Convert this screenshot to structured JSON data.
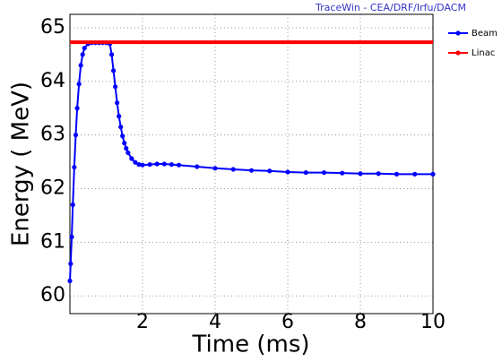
{
  "chart_data": {
    "type": "line",
    "title": "TraceWin - CEA/DRF/Irfu/DACM",
    "x_label": "Time (ms)",
    "y_label": "Energy ( MeV)",
    "xlim": [
      0,
      10
    ],
    "xticks": [
      2,
      4,
      6,
      8,
      10
    ],
    "ylim": [
      59.67,
      65.25
    ],
    "yticks": [
      60,
      61,
      62,
      63,
      64,
      65
    ],
    "grid": true,
    "legend": "top-right",
    "series": [
      {
        "name": "Beam",
        "color": "#0000ff",
        "markers": true,
        "x": [
          0,
          0.02,
          0.05,
          0.08,
          0.12,
          0.16,
          0.2,
          0.25,
          0.3,
          0.35,
          0.4,
          0.5,
          0.6,
          0.7,
          0.8,
          0.9,
          1.0,
          1.1,
          1.15,
          1.2,
          1.25,
          1.3,
          1.35,
          1.4,
          1.45,
          1.5,
          1.55,
          1.6,
          1.7,
          1.8,
          1.9,
          2.0,
          2.2,
          2.4,
          2.6,
          2.8,
          3,
          3.5,
          4,
          4.5,
          5,
          5.5,
          6,
          6.5,
          7,
          7.5,
          8,
          8.5,
          9,
          9.5,
          10
        ],
        "values": [
          60.28,
          60.6,
          61.1,
          61.7,
          62.4,
          63.0,
          63.5,
          63.95,
          64.3,
          64.5,
          64.62,
          64.7,
          64.72,
          64.72,
          64.72,
          64.72,
          64.72,
          64.7,
          64.5,
          64.2,
          63.9,
          63.6,
          63.35,
          63.15,
          62.98,
          62.85,
          62.75,
          62.67,
          62.56,
          62.49,
          62.45,
          62.44,
          62.45,
          62.46,
          62.46,
          62.45,
          62.44,
          62.41,
          62.38,
          62.36,
          62.34,
          62.33,
          62.31,
          62.3,
          62.3,
          62.29,
          62.28,
          62.28,
          62.27,
          62.27,
          62.27
        ]
      },
      {
        "name": "Linac",
        "color": "#ff0000",
        "markers": false,
        "x": [
          0,
          10
        ],
        "values": [
          64.73,
          64.73
        ]
      }
    ]
  }
}
